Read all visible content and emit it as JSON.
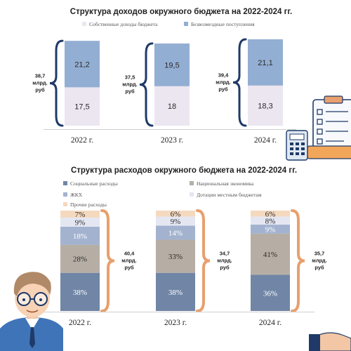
{
  "chart_data": [
    {
      "type": "bar",
      "stacked": true,
      "title": "Структура доходов окружного бюджета на 2022-2024 гг.",
      "categories": [
        "2022 г.",
        "2023 г.",
        "2024 г."
      ],
      "series": [
        {
          "name": "Собственные доходы бюджета",
          "color": "#ece6f0",
          "values": [
            17.5,
            18,
            18.3
          ],
          "labels": [
            "17,5",
            "18",
            "18,3"
          ]
        },
        {
          "name": "Безвозмездные поступления",
          "color": "#93aed3",
          "values": [
            21.2,
            19.5,
            21.1
          ],
          "labels": [
            "21,2",
            "19,5",
            "21,1"
          ]
        }
      ],
      "totals": [
        "38,7 млрд. руб",
        "37,5 млрд. руб",
        "39,4 млрд. руб"
      ],
      "legend_position": "top",
      "brace_color": "#1f3a68"
    },
    {
      "type": "bar",
      "stacked": true,
      "percent": true,
      "title": "Структура расходов окружного бюджета на 2022-2024 гг.",
      "categories": [
        "2022 г.",
        "2023 г.",
        "2024 г."
      ],
      "series": [
        {
          "name": "Социальные расходы",
          "color": "#7186a6",
          "values": [
            38,
            38,
            36
          ]
        },
        {
          "name": "Национальная экономика",
          "color": "#b6aea5",
          "values": [
            28,
            33,
            41
          ]
        },
        {
          "name": "ЖКХ",
          "color": "#a3b3cf",
          "values": [
            18,
            14,
            9
          ]
        },
        {
          "name": "Дотации местным бюджетам",
          "color": "#e4e7f2",
          "values": [
            9,
            9,
            8
          ]
        },
        {
          "name": "Прочие расходы",
          "color": "#f5d9bf",
          "values": [
            7,
            6,
            6
          ]
        }
      ],
      "totals": [
        "40,4 млрд. руб",
        "34,7 млрд. руб",
        "35,7 млрд. руб"
      ],
      "legend_position": "top",
      "brace_color": "#e8a06e"
    }
  ]
}
